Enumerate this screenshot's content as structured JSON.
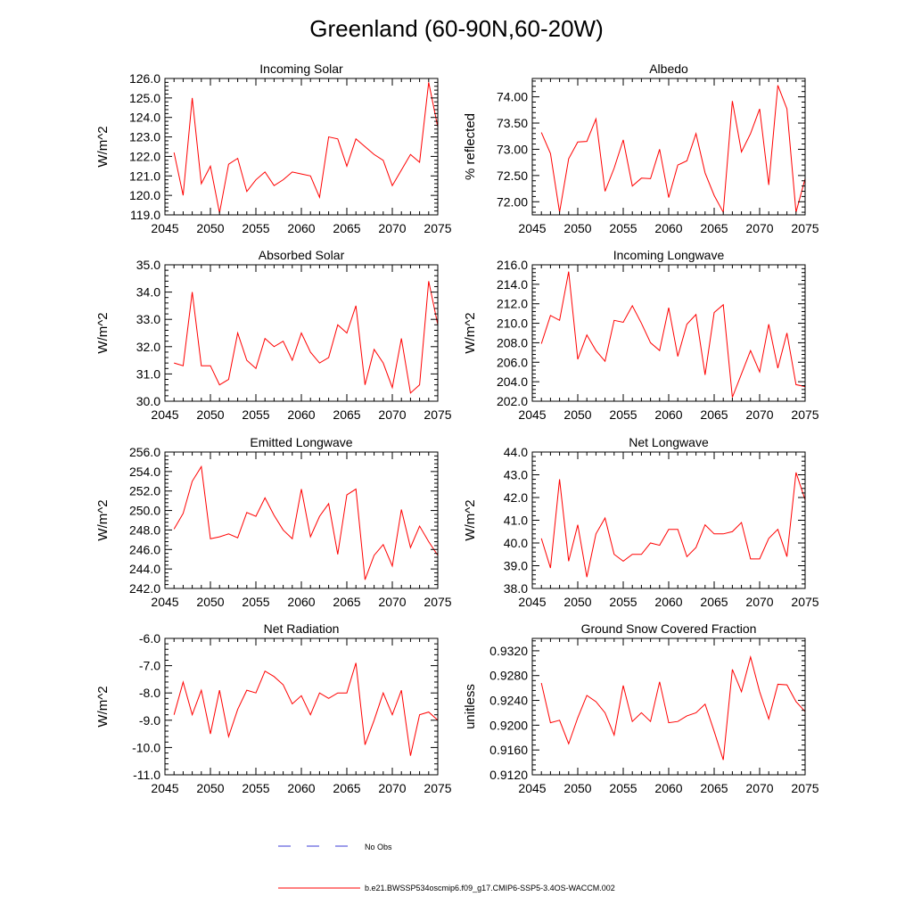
{
  "page_title": "Greenland (60-90N,60-20W)",
  "legend": {
    "no_obs_label": "No Obs",
    "model_label": "b.e21.BWSSP534oscmip6.f09_g17.CMIP6-SSP5-3.4OS-WACCM.002",
    "no_obs_color": "#3b3bd6",
    "model_color": "#ff0000"
  },
  "chart_data": [
    {
      "type": "line",
      "title": "Incoming Solar",
      "xlabel": "",
      "ylabel": "W/m^2",
      "xlim": [
        2045,
        2075
      ],
      "ylim": [
        119.0,
        126.0
      ],
      "xticks": [
        2045,
        2050,
        2055,
        2060,
        2065,
        2070,
        2075
      ],
      "yticks": [
        119.0,
        120.0,
        121.0,
        122.0,
        123.0,
        124.0,
        125.0,
        126.0
      ],
      "ytick_decimals": 1,
      "x": [
        2046,
        2047,
        2048,
        2049,
        2050,
        2051,
        2052,
        2053,
        2054,
        2055,
        2056,
        2057,
        2058,
        2059,
        2060,
        2061,
        2062,
        2063,
        2064,
        2065,
        2066,
        2067,
        2068,
        2069,
        2070,
        2071,
        2072,
        2073,
        2074,
        2075
      ],
      "series": [
        {
          "name": "b.e21.BWSSP534oscmip6.f09_g17.CMIP6-SSP5-3.4OS-WACCM.002",
          "values": [
            122.2,
            120.0,
            125.0,
            120.6,
            121.5,
            119.1,
            121.6,
            121.9,
            120.2,
            120.8,
            121.2,
            120.5,
            120.8,
            121.2,
            121.1,
            121.0,
            119.9,
            123.0,
            122.9,
            121.5,
            122.9,
            122.5,
            122.1,
            121.8,
            120.5,
            121.3,
            122.1,
            121.7,
            125.8,
            123.5
          ]
        }
      ]
    },
    {
      "type": "line",
      "title": "Albedo",
      "xlabel": "",
      "ylabel": "% reflected",
      "xlim": [
        2045,
        2075
      ],
      "ylim": [
        71.75,
        74.35
      ],
      "xticks": [
        2045,
        2050,
        2055,
        2060,
        2065,
        2070,
        2075
      ],
      "yticks": [
        72.0,
        72.5,
        73.0,
        73.5,
        74.0
      ],
      "ytick_decimals": 2,
      "x": [
        2046,
        2047,
        2048,
        2049,
        2050,
        2051,
        2052,
        2053,
        2054,
        2055,
        2056,
        2057,
        2058,
        2059,
        2060,
        2061,
        2062,
        2063,
        2064,
        2065,
        2066,
        2067,
        2068,
        2069,
        2070,
        2071,
        2072,
        2073,
        2074,
        2075
      ],
      "series": [
        {
          "name": "b.e21.BWSSP534oscmip6.f09_g17.CMIP6-SSP5-3.4OS-WACCM.002",
          "values": [
            73.32,
            72.92,
            71.8,
            72.82,
            73.14,
            73.15,
            73.58,
            72.2,
            72.64,
            73.18,
            72.3,
            72.45,
            72.44,
            73.0,
            72.08,
            72.7,
            72.78,
            73.3,
            72.55,
            72.12,
            71.8,
            73.92,
            72.95,
            73.3,
            73.77,
            72.32,
            74.22,
            73.77,
            71.8,
            72.44
          ]
        }
      ]
    },
    {
      "type": "line",
      "title": "Absorbed Solar",
      "xlabel": "",
      "ylabel": "W/m^2",
      "xlim": [
        2045,
        2075
      ],
      "ylim": [
        30.0,
        35.0
      ],
      "xticks": [
        2045,
        2050,
        2055,
        2060,
        2065,
        2070,
        2075
      ],
      "yticks": [
        30.0,
        31.0,
        32.0,
        33.0,
        34.0,
        35.0
      ],
      "ytick_decimals": 1,
      "x": [
        2046,
        2047,
        2048,
        2049,
        2050,
        2051,
        2052,
        2053,
        2054,
        2055,
        2056,
        2057,
        2058,
        2059,
        2060,
        2061,
        2062,
        2063,
        2064,
        2065,
        2066,
        2067,
        2068,
        2069,
        2070,
        2071,
        2072,
        2073,
        2074,
        2075
      ],
      "series": [
        {
          "name": "b.e21.BWSSP534oscmip6.f09_g17.CMIP6-SSP5-3.4OS-WACCM.002",
          "values": [
            31.4,
            31.3,
            34.0,
            31.3,
            31.3,
            30.6,
            30.8,
            32.5,
            31.5,
            31.2,
            32.3,
            32.0,
            32.2,
            31.5,
            32.5,
            31.8,
            31.4,
            31.6,
            32.8,
            32.5,
            33.5,
            30.6,
            31.9,
            31.4,
            30.5,
            32.3,
            30.3,
            30.6,
            34.4,
            32.8
          ]
        }
      ]
    },
    {
      "type": "line",
      "title": "Incoming Longwave",
      "xlabel": "",
      "ylabel": "W/m^2",
      "xlim": [
        2045,
        2075
      ],
      "ylim": [
        202.0,
        216.0
      ],
      "xticks": [
        2045,
        2050,
        2055,
        2060,
        2065,
        2070,
        2075
      ],
      "yticks": [
        202.0,
        204.0,
        206.0,
        208.0,
        210.0,
        212.0,
        214.0,
        216.0
      ],
      "ytick_decimals": 1,
      "x": [
        2046,
        2047,
        2048,
        2049,
        2050,
        2051,
        2052,
        2053,
        2054,
        2055,
        2056,
        2057,
        2058,
        2059,
        2060,
        2061,
        2062,
        2063,
        2064,
        2065,
        2066,
        2067,
        2068,
        2069,
        2070,
        2071,
        2072,
        2073,
        2074,
        2075
      ],
      "series": [
        {
          "name": "b.e21.BWSSP534oscmip6.f09_g17.CMIP6-SSP5-3.4OS-WACCM.002",
          "values": [
            207.9,
            210.8,
            210.3,
            215.3,
            206.3,
            208.8,
            207.2,
            206.1,
            210.3,
            210.1,
            211.8,
            210.0,
            208.0,
            207.2,
            211.6,
            206.6,
            209.9,
            210.9,
            204.7,
            211.1,
            211.9,
            202.4,
            204.8,
            207.2,
            205.0,
            209.9,
            205.4,
            209.0,
            203.7,
            203.5
          ]
        }
      ]
    },
    {
      "type": "line",
      "title": "Emitted Longwave",
      "xlabel": "",
      "ylabel": "W/m^2",
      "xlim": [
        2045,
        2075
      ],
      "ylim": [
        242.0,
        256.0
      ],
      "xticks": [
        2045,
        2050,
        2055,
        2060,
        2065,
        2070,
        2075
      ],
      "yticks": [
        242.0,
        244.0,
        246.0,
        248.0,
        250.0,
        252.0,
        254.0,
        256.0
      ],
      "ytick_decimals": 1,
      "x": [
        2046,
        2047,
        2048,
        2049,
        2050,
        2051,
        2052,
        2053,
        2054,
        2055,
        2056,
        2057,
        2058,
        2059,
        2060,
        2061,
        2062,
        2063,
        2064,
        2065,
        2066,
        2067,
        2068,
        2069,
        2070,
        2071,
        2072,
        2073,
        2074,
        2075
      ],
      "series": [
        {
          "name": "b.e21.BWSSP534oscmip6.f09_g17.CMIP6-SSP5-3.4OS-WACCM.002",
          "values": [
            248.1,
            249.7,
            253.0,
            254.5,
            247.1,
            247.3,
            247.6,
            247.2,
            249.8,
            249.4,
            251.3,
            249.5,
            248.0,
            247.1,
            252.2,
            247.3,
            249.4,
            250.7,
            245.5,
            251.6,
            252.2,
            242.9,
            245.4,
            246.5,
            244.3,
            250.1,
            246.2,
            248.4,
            246.8,
            245.4
          ]
        }
      ]
    },
    {
      "type": "line",
      "title": "Net Longwave",
      "xlabel": "",
      "ylabel": "W/m^2",
      "xlim": [
        2045,
        2075
      ],
      "ylim": [
        38.0,
        44.0
      ],
      "xticks": [
        2045,
        2050,
        2055,
        2060,
        2065,
        2070,
        2075
      ],
      "yticks": [
        38.0,
        39.0,
        40.0,
        41.0,
        42.0,
        43.0,
        44.0
      ],
      "ytick_decimals": 1,
      "x": [
        2046,
        2047,
        2048,
        2049,
        2050,
        2051,
        2052,
        2053,
        2054,
        2055,
        2056,
        2057,
        2058,
        2059,
        2060,
        2061,
        2062,
        2063,
        2064,
        2065,
        2066,
        2067,
        2068,
        2069,
        2070,
        2071,
        2072,
        2073,
        2074,
        2075
      ],
      "series": [
        {
          "name": "b.e21.BWSSP534oscmip6.f09_g17.CMIP6-SSP5-3.4OS-WACCM.002",
          "values": [
            40.2,
            38.9,
            42.8,
            39.2,
            40.8,
            38.5,
            40.4,
            41.1,
            39.5,
            39.2,
            39.5,
            39.5,
            40.0,
            39.9,
            40.6,
            40.6,
            39.4,
            39.8,
            40.8,
            40.4,
            40.4,
            40.5,
            40.9,
            39.3,
            39.3,
            40.2,
            40.6,
            39.4,
            43.1,
            41.9
          ]
        }
      ]
    },
    {
      "type": "line",
      "title": "Net Radiation",
      "xlabel": "",
      "ylabel": "W/m^2",
      "xlim": [
        2045,
        2075
      ],
      "ylim": [
        -11.0,
        -6.0
      ],
      "xticks": [
        2045,
        2050,
        2055,
        2060,
        2065,
        2070,
        2075
      ],
      "yticks": [
        -11.0,
        -10.0,
        -9.0,
        -8.0,
        -7.0,
        -6.0
      ],
      "ytick_decimals": 1,
      "x": [
        2046,
        2047,
        2048,
        2049,
        2050,
        2051,
        2052,
        2053,
        2054,
        2055,
        2056,
        2057,
        2058,
        2059,
        2060,
        2061,
        2062,
        2063,
        2064,
        2065,
        2066,
        2067,
        2068,
        2069,
        2070,
        2071,
        2072,
        2073,
        2074,
        2075
      ],
      "series": [
        {
          "name": "b.e21.BWSSP534oscmip6.f09_g17.CMIP6-SSP5-3.4OS-WACCM.002",
          "values": [
            -8.8,
            -7.6,
            -8.8,
            -7.9,
            -9.5,
            -7.9,
            -9.6,
            -8.6,
            -7.9,
            -8.0,
            -7.2,
            -7.4,
            -7.7,
            -8.4,
            -8.1,
            -8.8,
            -8.0,
            -8.2,
            -8.0,
            -8.0,
            -6.9,
            -9.9,
            -9.0,
            -8.0,
            -8.8,
            -7.9,
            -10.3,
            -8.8,
            -8.7,
            -9.0
          ]
        }
      ]
    },
    {
      "type": "line",
      "title": "Ground Snow Covered Fraction",
      "xlabel": "",
      "ylabel": "unitless",
      "xlim": [
        2045,
        2075
      ],
      "ylim": [
        0.912,
        0.934
      ],
      "xticks": [
        2045,
        2050,
        2055,
        2060,
        2065,
        2070,
        2075
      ],
      "yticks": [
        0.912,
        0.916,
        0.92,
        0.924,
        0.928,
        0.932
      ],
      "ytick_decimals": 4,
      "x": [
        2046,
        2047,
        2048,
        2049,
        2050,
        2051,
        2052,
        2053,
        2054,
        2055,
        2056,
        2057,
        2058,
        2059,
        2060,
        2061,
        2062,
        2063,
        2064,
        2065,
        2066,
        2067,
        2068,
        2069,
        2070,
        2071,
        2072,
        2073,
        2074,
        2075
      ],
      "series": [
        {
          "name": "b.e21.BWSSP534oscmip6.f09_g17.CMIP6-SSP5-3.4OS-WACCM.002",
          "values": [
            0.9268,
            0.9204,
            0.9208,
            0.917,
            0.9212,
            0.9248,
            0.9238,
            0.922,
            0.9184,
            0.9264,
            0.9206,
            0.922,
            0.9206,
            0.927,
            0.9204,
            0.9206,
            0.9215,
            0.922,
            0.9234,
            0.919,
            0.9144,
            0.929,
            0.9254,
            0.931,
            0.9254,
            0.921,
            0.9266,
            0.9265,
            0.9238,
            0.9222
          ]
        }
      ]
    }
  ]
}
